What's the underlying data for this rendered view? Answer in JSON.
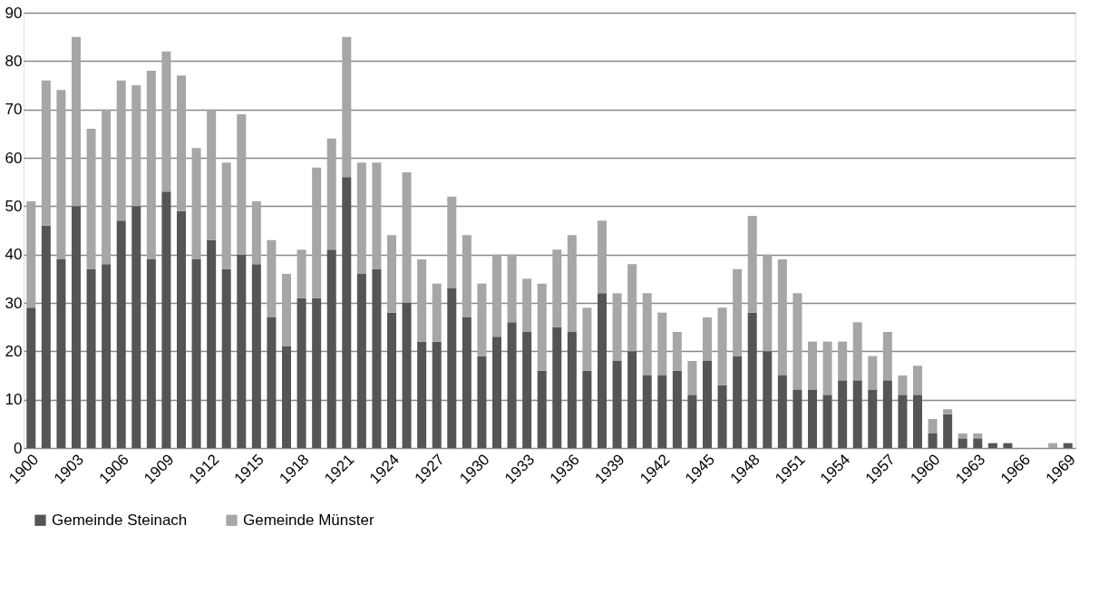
{
  "chart_data": {
    "type": "bar",
    "stacked": true,
    "categories": [
      "1900",
      null,
      null,
      "1903",
      null,
      null,
      "1906",
      null,
      null,
      "1909",
      null,
      null,
      "1912",
      null,
      null,
      "1915",
      null,
      null,
      "1918",
      null,
      null,
      "1921",
      null,
      null,
      "1924",
      null,
      null,
      "1927",
      null,
      null,
      "1930",
      null,
      null,
      "1933",
      null,
      null,
      "1936",
      null,
      null,
      "1939",
      null,
      null,
      "1942",
      null,
      null,
      "1945",
      null,
      null,
      "1948",
      null,
      null,
      "1951",
      null,
      null,
      "1954",
      null,
      null,
      "1957",
      null,
      null,
      "1960",
      null,
      null,
      "1963",
      null,
      null,
      "1966",
      null,
      null,
      "1969"
    ],
    "series": [
      {
        "name": "Gemeinde Steinach",
        "color": "#555555",
        "values": [
          29,
          46,
          39,
          50,
          37,
          38,
          47,
          50,
          39,
          53,
          49,
          39,
          43,
          37,
          40,
          38,
          27,
          21,
          31,
          31,
          41,
          56,
          36,
          37,
          28,
          30,
          22,
          22,
          33,
          27,
          19,
          23,
          26,
          24,
          16,
          25,
          24,
          16,
          32,
          18,
          20,
          15,
          15,
          16,
          11,
          18,
          13,
          19,
          28,
          20,
          15,
          12,
          12,
          11,
          14,
          14,
          12,
          14,
          11,
          11,
          3,
          7,
          2,
          2,
          1,
          1,
          0,
          0,
          0,
          1
        ]
      },
      {
        "name": "Gemeinde Münster",
        "color": "#a6a6a6",
        "values": [
          22,
          30,
          35,
          35,
          29,
          32,
          29,
          25,
          39,
          29,
          28,
          23,
          27,
          22,
          29,
          13,
          16,
          15,
          10,
          27,
          23,
          29,
          23,
          22,
          16,
          27,
          17,
          12,
          19,
          17,
          15,
          17,
          14,
          11,
          18,
          16,
          20,
          13,
          15,
          14,
          18,
          17,
          13,
          8,
          7,
          9,
          16,
          18,
          20,
          20,
          24,
          20,
          10,
          11,
          8,
          12,
          7,
          10,
          4,
          6,
          3,
          1,
          1,
          1,
          0,
          0,
          0,
          0,
          1,
          0
        ]
      }
    ],
    "ylim": [
      0,
      90
    ],
    "yticks": [
      0,
      10,
      20,
      30,
      40,
      50,
      60,
      70,
      80,
      90
    ],
    "grid": "y",
    "legend": "bottom"
  }
}
